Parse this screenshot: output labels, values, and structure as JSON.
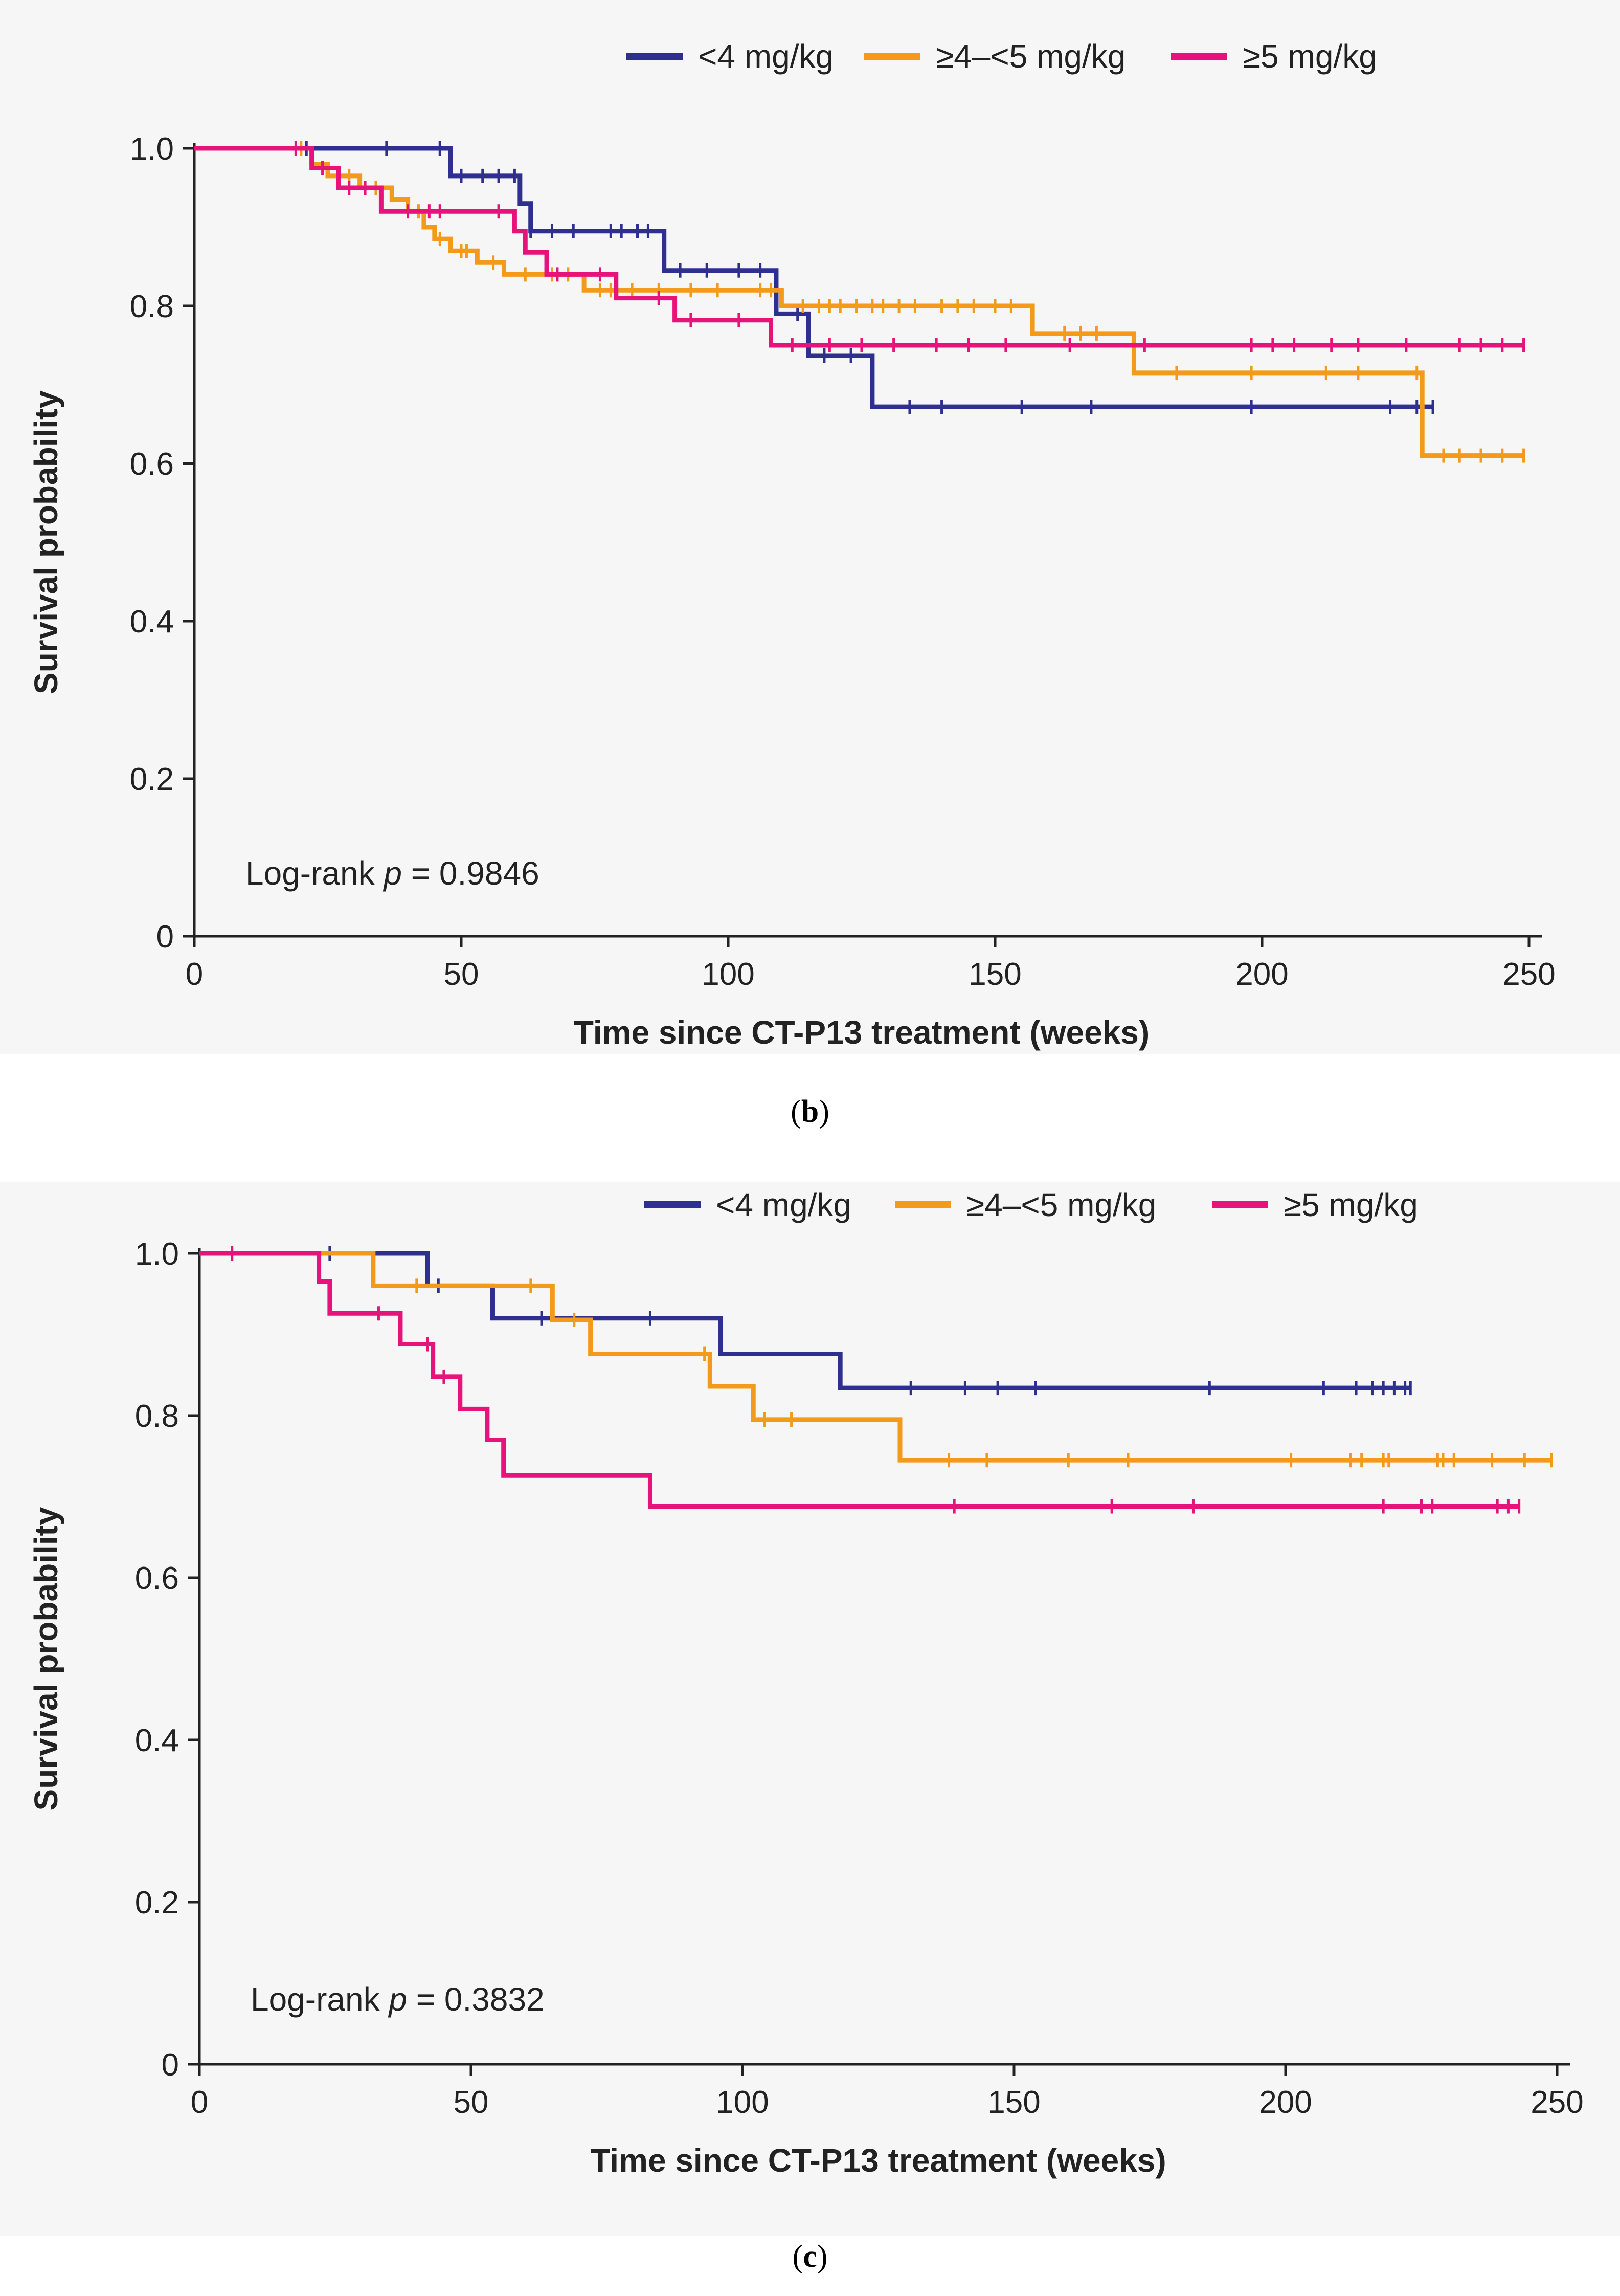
{
  "chart_data": [
    {
      "type": "line",
      "subtype": "kaplan-meier",
      "panel_label": "b",
      "xlabel": "Time since CT-P13 treatment (weeks)",
      "ylabel": "Survival probability",
      "xlim": [
        0,
        250
      ],
      "ylim": [
        0,
        1
      ],
      "x_ticks": [
        "0",
        "50",
        "100",
        "150",
        "200",
        "250"
      ],
      "y_ticks": [
        "0",
        "0.2",
        "0.4",
        "0.6",
        "0.8",
        "1.0"
      ],
      "annotation": {
        "prefix": "Log-rank ",
        "italic": "p",
        "suffix": " = 0.9846"
      },
      "legend_position": "top",
      "series": [
        {
          "name": "<4 mg/kg",
          "color": "#2e2f8f",
          "steps": [
            [
              0,
              1.0
            ],
            [
              48,
              0.965
            ],
            [
              61,
              0.93
            ],
            [
              63,
              0.895
            ],
            [
              88,
              0.845
            ],
            [
              109,
              0.79
            ],
            [
              115,
              0.737
            ],
            [
              127,
              0.672
            ],
            [
              232,
              0.672
            ]
          ],
          "censors": [
            21,
            36,
            46,
            50,
            54,
            57,
            60,
            63,
            67,
            71,
            78,
            80,
            83,
            85,
            91,
            96,
            102,
            106,
            113,
            118,
            123,
            134,
            140,
            155,
            168,
            198,
            224,
            229,
            232
          ]
        },
        {
          "name": "≥4–<5 mg/kg",
          "color": "#f39a1b",
          "steps": [
            [
              0,
              1.0
            ],
            [
              22,
              0.98
            ],
            [
              25,
              0.965
            ],
            [
              31,
              0.95
            ],
            [
              37,
              0.935
            ],
            [
              40,
              0.92
            ],
            [
              43,
              0.9
            ],
            [
              45,
              0.885
            ],
            [
              48,
              0.87
            ],
            [
              53,
              0.855
            ],
            [
              58,
              0.84
            ],
            [
              73,
              0.82
            ],
            [
              110,
              0.8
            ],
            [
              157,
              0.765
            ],
            [
              176,
              0.715
            ],
            [
              230,
              0.61
            ],
            [
              249,
              0.61
            ]
          ],
          "censors": [
            20,
            29,
            34,
            42,
            46,
            50,
            51,
            56,
            62,
            67,
            70,
            76,
            78,
            82,
            87,
            93,
            98,
            106,
            108,
            114,
            117,
            119,
            121,
            124,
            127,
            129,
            132,
            135,
            140,
            143,
            146,
            150,
            153,
            163,
            166,
            169,
            184,
            198,
            212,
            218,
            229,
            234,
            237,
            241,
            245,
            249
          ]
        },
        {
          "name": "≥5 mg/kg",
          "color": "#e6147a",
          "steps": [
            [
              0,
              1.0
            ],
            [
              22,
              0.975
            ],
            [
              27,
              0.95
            ],
            [
              35,
              0.92
            ],
            [
              60,
              0.895
            ],
            [
              62,
              0.868
            ],
            [
              66,
              0.84
            ],
            [
              79,
              0.81
            ],
            [
              90,
              0.782
            ],
            [
              108,
              0.75
            ],
            [
              249,
              0.75
            ]
          ],
          "censors": [
            19,
            24,
            29,
            32,
            40,
            44,
            46,
            57,
            68,
            76,
            87,
            93,
            102,
            112,
            119,
            125,
            131,
            139,
            145,
            152,
            164,
            178,
            198,
            202,
            206,
            213,
            218,
            227,
            237,
            241,
            245,
            249
          ]
        }
      ]
    },
    {
      "type": "line",
      "subtype": "kaplan-meier",
      "panel_label": "c",
      "xlabel": "Time since CT-P13 treatment (weeks)",
      "ylabel": "Survival probability",
      "xlim": [
        0,
        250
      ],
      "ylim": [
        0,
        1
      ],
      "x_ticks": [
        "0",
        "50",
        "100",
        "150",
        "200",
        "250"
      ],
      "y_ticks": [
        "0",
        "0.2",
        "0.4",
        "0.6",
        "0.8",
        "1.0"
      ],
      "annotation": {
        "prefix": "Log-rank ",
        "italic": "p",
        "suffix": " = 0.3832"
      },
      "legend_position": "top",
      "series": [
        {
          "name": "<4 mg/kg",
          "color": "#2e2f8f",
          "steps": [
            [
              0,
              1.0
            ],
            [
              42,
              0.96
            ],
            [
              54,
              0.92
            ],
            [
              96,
              0.876
            ],
            [
              118,
              0.834
            ],
            [
              223,
              0.834
            ]
          ],
          "censors": [
            24,
            44,
            63,
            83,
            131,
            141,
            147,
            154,
            186,
            207,
            213,
            216,
            218,
            220,
            222,
            223
          ]
        },
        {
          "name": "≥4–<5 mg/kg",
          "color": "#f39a1b",
          "steps": [
            [
              0,
              1.0
            ],
            [
              32,
              0.96
            ],
            [
              65,
              0.918
            ],
            [
              72,
              0.876
            ],
            [
              94,
              0.836
            ],
            [
              102,
              0.795
            ],
            [
              129,
              0.745
            ],
            [
              249,
              0.745
            ]
          ],
          "censors": [
            40,
            61,
            69,
            93,
            104,
            109,
            138,
            145,
            160,
            171,
            201,
            212,
            214,
            218,
            219,
            228,
            229,
            231,
            238,
            244,
            249
          ]
        },
        {
          "name": "≥5 mg/kg",
          "color": "#e6147a",
          "steps": [
            [
              0,
              1.0
            ],
            [
              22,
              0.965
            ],
            [
              24,
              0.926
            ],
            [
              37,
              0.888
            ],
            [
              43,
              0.848
            ],
            [
              48,
              0.808
            ],
            [
              53,
              0.77
            ],
            [
              56,
              0.726
            ],
            [
              83,
              0.688
            ],
            [
              243,
              0.688
            ]
          ],
          "censors": [
            6,
            33,
            42,
            45,
            139,
            168,
            183,
            218,
            225,
            227,
            239,
            241,
            243
          ]
        }
      ]
    }
  ]
}
